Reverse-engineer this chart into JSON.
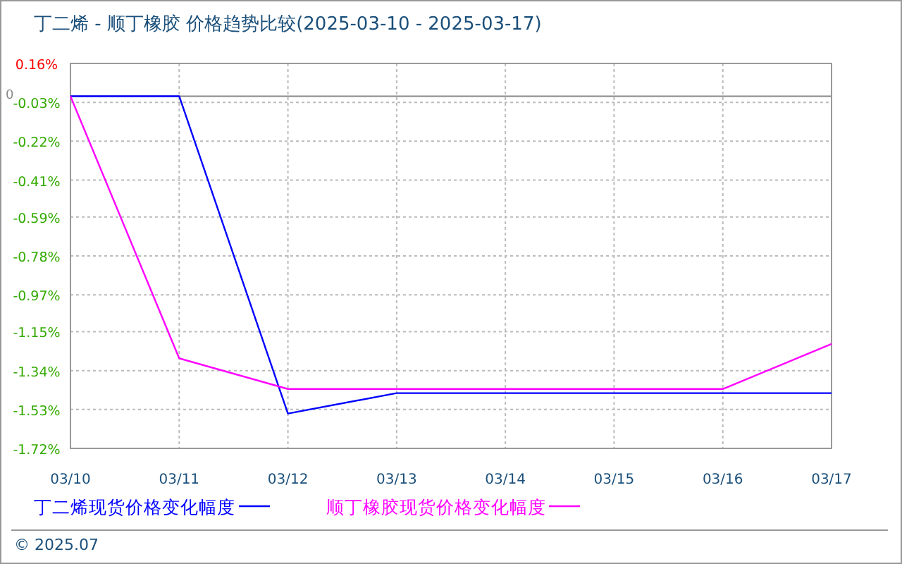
{
  "chart_data": {
    "type": "line",
    "title": "丁二烯 - 顺丁橡胶 价格趋势比较(2025-03-10 - 2025-03-17)",
    "categories": [
      "03/10",
      "03/11",
      "03/12",
      "03/13",
      "03/14",
      "03/15",
      "03/16",
      "03/17"
    ],
    "series": [
      {
        "name": "丁二烯现货价格变化幅度",
        "color": "#0000ff",
        "values": [
          0,
          0,
          -1.55,
          -1.45,
          -1.45,
          -1.45,
          -1.45,
          -1.45
        ]
      },
      {
        "name": "顺丁橡胶现货价格变化幅度",
        "color": "#ff00ff",
        "values": [
          0,
          -1.28,
          -1.43,
          -1.43,
          -1.43,
          -1.43,
          -1.43,
          -1.21
        ]
      }
    ],
    "ylim": [
      -1.72,
      0.16
    ],
    "yticks": [
      {
        "value": 0.16,
        "label": "0.16%"
      },
      {
        "value": -0.03,
        "label": "-0.03%"
      },
      {
        "value": -0.22,
        "label": "-0.22%"
      },
      {
        "value": -0.41,
        "label": "-0.41%"
      },
      {
        "value": -0.59,
        "label": "-0.59%"
      },
      {
        "value": -0.78,
        "label": "-0.78%"
      },
      {
        "value": -0.97,
        "label": "-0.97%"
      },
      {
        "value": -1.15,
        "label": "-1.15%"
      },
      {
        "value": -1.34,
        "label": "-1.34%"
      },
      {
        "value": -1.53,
        "label": "-1.53%"
      },
      {
        "value": -1.72,
        "label": "-1.72%"
      }
    ],
    "ref_lines": [
      {
        "axis": "y",
        "value": 0,
        "label": "0",
        "color": "#888888"
      }
    ],
    "grid": true,
    "legend": "bottom",
    "marker": "none",
    "line_style": "solid",
    "annotations": [
      "© 2025.07"
    ]
  }
}
